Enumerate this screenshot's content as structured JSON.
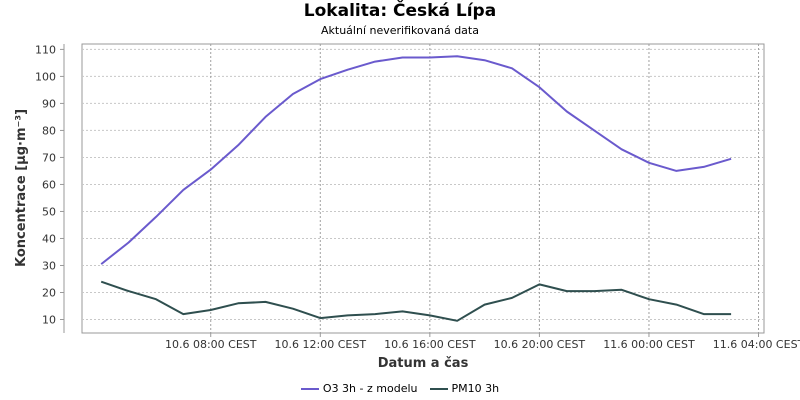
{
  "chart_data": {
    "type": "line",
    "title": "Lokalita: Česká Lípa",
    "subtitle": "Aktuální neverifikovaná data",
    "xlabel": "Datum a čas",
    "ylabel": "Koncentrace [µg·m⁻³]",
    "ylim": [
      5,
      112
    ],
    "yticks": [
      10,
      20,
      30,
      40,
      50,
      60,
      70,
      80,
      90,
      100,
      110
    ],
    "x_hours": [
      4,
      5,
      6,
      7,
      8,
      9,
      10,
      11,
      12,
      13,
      14,
      15,
      16,
      17,
      18,
      19,
      20,
      21,
      22,
      23,
      24,
      25,
      26,
      27,
      28
    ],
    "xlim_hours": [
      3.3,
      28.2
    ],
    "xticks": [
      {
        "hour": 8,
        "label": "10.6 08:00 CEST"
      },
      {
        "hour": 12,
        "label": "10.6 12:00 CEST"
      },
      {
        "hour": 16,
        "label": "10.6 16:00 CEST"
      },
      {
        "hour": 20,
        "label": "10.6 20:00 CEST"
      },
      {
        "hour": 24,
        "label": "11.6 00:00 CEST"
      },
      {
        "hour": 28,
        "label": "11.6 04:00 CEST"
      }
    ],
    "grid": true,
    "legend_position": "bottom",
    "series": [
      {
        "name": "O3 3h - z modelu",
        "color": "#6a5acd",
        "values": [
          30.5,
          38.5,
          48,
          58,
          65.5,
          74.5,
          85,
          93.5,
          99,
          102.5,
          105.5,
          107,
          107,
          107.5,
          106,
          103,
          96,
          87,
          80,
          73,
          68,
          65,
          66.5,
          69.5,
          null
        ]
      },
      {
        "name": "PM10 3h",
        "color": "#2f4f4f",
        "values": [
          24,
          20.5,
          17.5,
          12,
          13.5,
          16,
          16.5,
          14,
          10.5,
          11.5,
          12,
          13,
          11.5,
          9.5,
          15.5,
          18,
          23,
          20.5,
          20.5,
          21,
          17.5,
          15.5,
          12,
          12,
          null
        ]
      }
    ]
  }
}
